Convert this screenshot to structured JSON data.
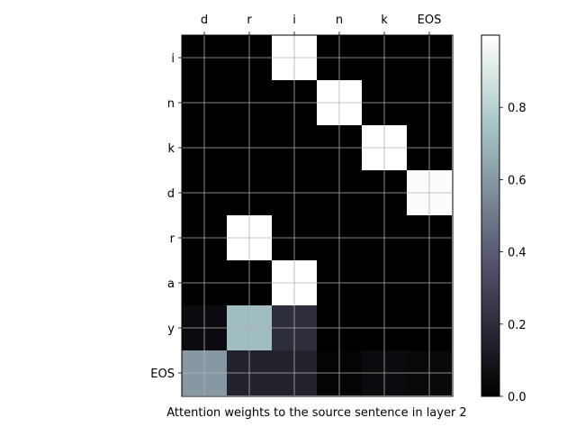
{
  "chart_data": {
    "type": "heatmap",
    "title": "",
    "xlabel": "Attention weights to the source sentence in layer 2",
    "ylabel": "",
    "x_categories": [
      "d",
      "r",
      "i",
      "n",
      "k",
      "EOS"
    ],
    "y_categories": [
      "i",
      "n",
      "k",
      "d",
      "r",
      "a",
      "y",
      "EOS"
    ],
    "values": [
      [
        0.0,
        0.0,
        1.0,
        0.0,
        0.0,
        0.0
      ],
      [
        0.0,
        0.0,
        0.0,
        1.0,
        0.0,
        0.0
      ],
      [
        0.0,
        0.0,
        0.0,
        0.0,
        1.0,
        0.0
      ],
      [
        0.0,
        0.0,
        0.0,
        0.0,
        0.0,
        0.99
      ],
      [
        0.0,
        1.0,
        0.0,
        0.0,
        0.0,
        0.0
      ],
      [
        0.0,
        0.0,
        1.0,
        0.0,
        0.0,
        0.0
      ],
      [
        0.05,
        0.72,
        0.2,
        0.0,
        0.0,
        0.0
      ],
      [
        0.6,
        0.15,
        0.15,
        0.02,
        0.05,
        0.04
      ]
    ],
    "colormap": "bone",
    "color_range": [
      0,
      1
    ],
    "colorbar_ticks": [
      "0.0",
      "0.2",
      "0.4",
      "0.6",
      "0.8"
    ],
    "colorbar_tick_values": [
      0.0,
      0.2,
      0.4,
      0.6,
      0.8
    ],
    "x_tick_position": "top",
    "grid": true
  }
}
